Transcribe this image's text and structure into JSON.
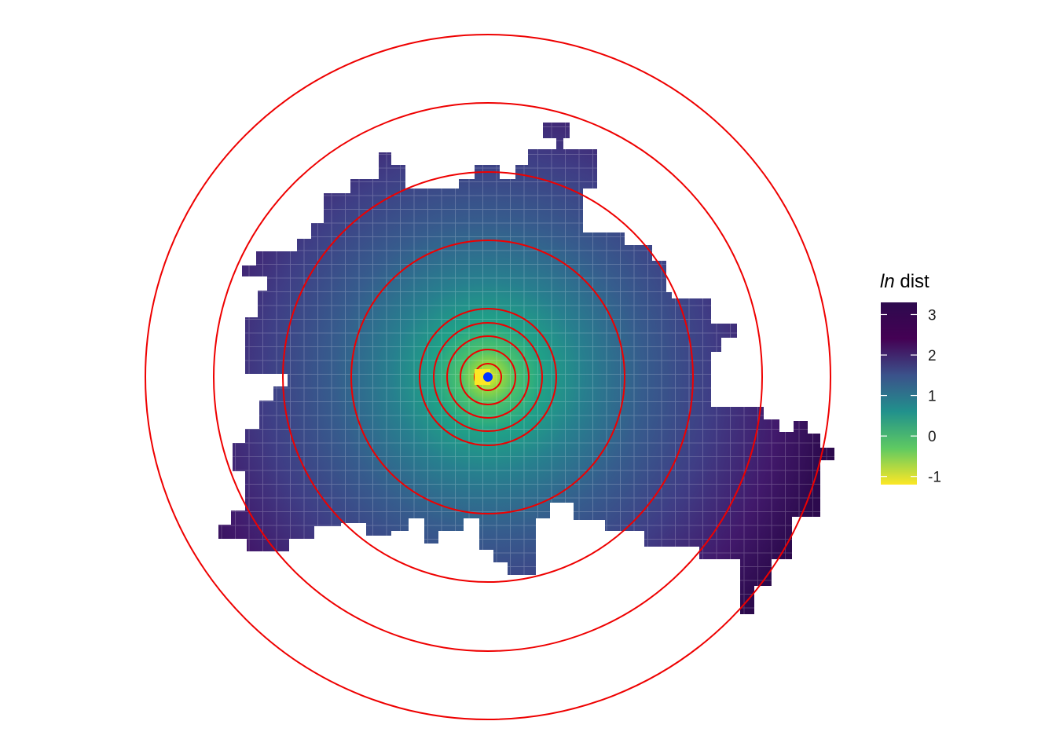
{
  "legend": {
    "title_italic": "ln",
    "title_rest": " dist",
    "ticks": [
      "3",
      "2",
      "1",
      "0",
      "-1"
    ],
    "tick_values": [
      3,
      2,
      1,
      0,
      -1
    ],
    "domain": [
      -1.2,
      3.3
    ],
    "palette": [
      "#fde725",
      "#5ec962",
      "#21918c",
      "#3b528b",
      "#440154",
      "#2d0a4e"
    ]
  },
  "map": {
    "cell_color_variable": "ln dist",
    "ring_color": "#ee0000",
    "ring_count": 9,
    "center_point_color": "#0033ff",
    "center_marker_color": "#fde725"
  }
}
